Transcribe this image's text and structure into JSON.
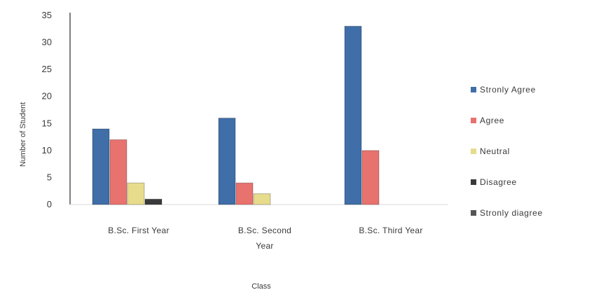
{
  "chart_data": {
    "type": "bar",
    "title": "",
    "xlabel": "Class",
    "ylabel": "Number of Student",
    "ylim": [
      0,
      35
    ],
    "yticks": [
      0,
      5,
      10,
      15,
      20,
      25,
      30,
      35
    ],
    "grid": false,
    "legend_position": "right",
    "categories": [
      [
        "B.Sc. First Year"
      ],
      [
        "B.Sc. Second",
        "Year"
      ],
      [
        "B.Sc. Third Year"
      ]
    ],
    "series": [
      {
        "name": "Stronly Agree",
        "color": "#3f6ea8",
        "values": [
          14,
          16,
          33
        ]
      },
      {
        "name": "Agree",
        "color": "#e8726e",
        "values": [
          12,
          4,
          10
        ]
      },
      {
        "name": "Neutral",
        "color": "#e6dc8c",
        "values": [
          4,
          2,
          0
        ]
      },
      {
        "name": "Disagree",
        "color": "#3a3a3a",
        "values": [
          1,
          0,
          0
        ]
      },
      {
        "name": "Stronly diagree",
        "color": "#555555",
        "values": [
          0,
          0,
          0
        ]
      }
    ]
  }
}
